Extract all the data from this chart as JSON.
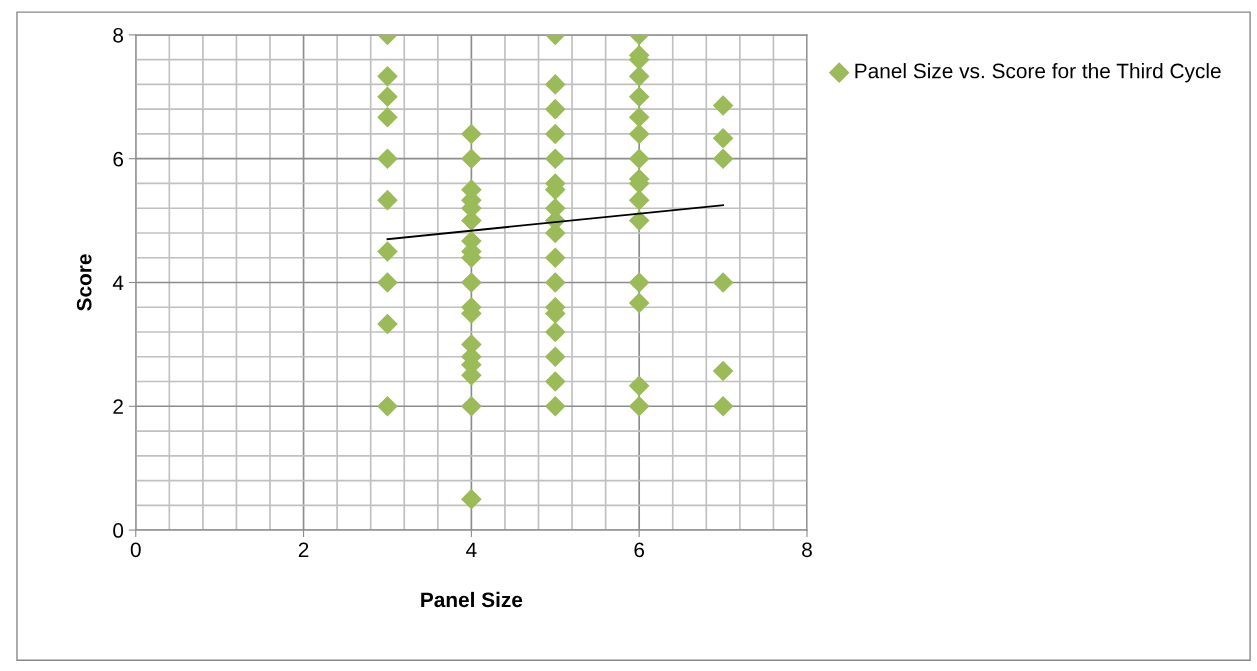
{
  "chart_data": {
    "type": "scatter",
    "xlabel": "Panel Size",
    "ylabel": "Score",
    "xlim": [
      0,
      8
    ],
    "ylim": [
      0,
      8
    ],
    "xticks": [
      0,
      2,
      4,
      6,
      8
    ],
    "yticks": [
      0,
      2,
      4,
      6,
      8
    ],
    "grid": true,
    "legend": "top right",
    "marker": "diamond",
    "series": [
      {
        "name": "Panel Size vs. Score for the Third Cycle",
        "color": "#9bbb59",
        "x": [
          3,
          3,
          3,
          3,
          3,
          3,
          3,
          3,
          3,
          3,
          4,
          4,
          4,
          4,
          4,
          4,
          4,
          4,
          4,
          4,
          4,
          4,
          4,
          4,
          4,
          4,
          4,
          4,
          5,
          5,
          5,
          5,
          5,
          5,
          5,
          5,
          5,
          5,
          5,
          5,
          5,
          5,
          5,
          5,
          5,
          5,
          6,
          6,
          6,
          6,
          6,
          6,
          6,
          6,
          6,
          6,
          6,
          6,
          6,
          6,
          6,
          6,
          7,
          7,
          7,
          7,
          7,
          7
        ],
        "values": [
          8,
          7.33,
          7,
          6.67,
          6,
          5.33,
          4.5,
          4,
          3.33,
          2,
          6.4,
          6,
          5.5,
          5.33,
          5.2,
          5,
          4.67,
          4.5,
          4.4,
          4,
          3.6,
          3.5,
          3,
          2.8,
          2.67,
          2.5,
          2,
          0.5,
          8,
          7.2,
          6.8,
          6.4,
          6,
          5.6,
          5.5,
          5.2,
          5,
          4.8,
          4.4,
          4,
          3.6,
          3.5,
          3.2,
          2.8,
          2.4,
          2,
          8,
          7.67,
          7.6,
          7.33,
          7,
          6.67,
          6.4,
          6,
          5.67,
          5.6,
          5.33,
          5,
          4,
          3.67,
          2.33,
          2,
          6.86,
          6.33,
          6,
          4,
          2.57,
          2
        ]
      },
      {
        "type": "line",
        "color": "#000000",
        "marker": "none",
        "x": [
          3,
          7
        ],
        "values": [
          4.7,
          5.25
        ]
      }
    ]
  }
}
